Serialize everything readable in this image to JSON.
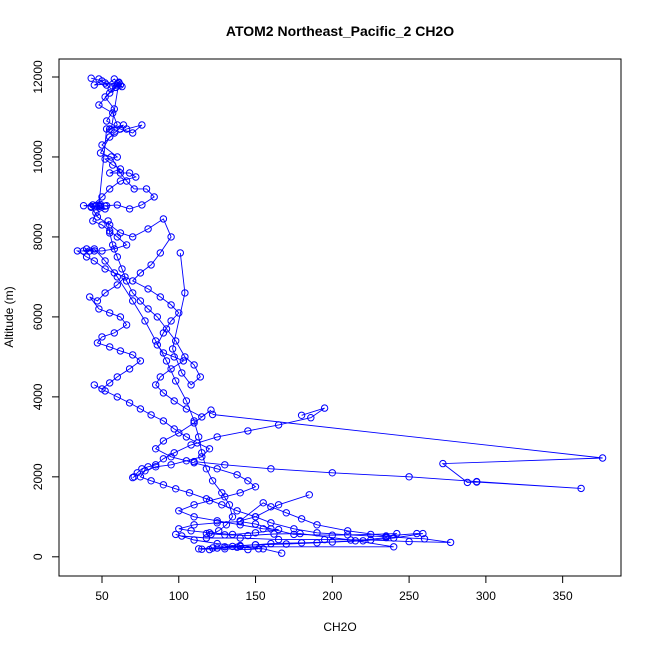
{
  "chart_data": {
    "type": "line",
    "title": "ATOM2 Northeast_Pacific_2 CH2O",
    "xlabel": "CH2O",
    "ylabel": "Altitude (m)",
    "xlim": [
      22,
      388
    ],
    "ylim": [
      -480,
      12450
    ],
    "xticks": [
      50,
      100,
      150,
      200,
      250,
      300,
      350
    ],
    "yticks": [
      0,
      2000,
      4000,
      6000,
      8000,
      10000,
      12000
    ],
    "grid": false,
    "legend": "none",
    "colors": {
      "series": "#0000ff"
    },
    "series": [
      {
        "values": [
          [
            48,
            11950
          ],
          [
            53,
            11800
          ],
          [
            58,
            11950
          ],
          [
            62,
            11800
          ],
          [
            56,
            11700
          ],
          [
            52,
            11850
          ],
          [
            60,
            11780
          ],
          [
            55,
            11600
          ],
          [
            48,
            11300
          ],
          [
            57,
            11100
          ],
          [
            60,
            10800
          ],
          [
            55,
            10700
          ],
          [
            64,
            10800
          ],
          [
            58,
            10600
          ],
          [
            50,
            10300
          ],
          [
            60,
            10000
          ],
          [
            52,
            9950
          ],
          [
            57,
            9800
          ],
          [
            62,
            9700
          ],
          [
            55,
            9600
          ],
          [
            68,
            9600
          ],
          [
            72,
            9500
          ],
          [
            62,
            9400
          ],
          [
            55,
            9200
          ],
          [
            50,
            9000
          ],
          [
            44,
            8800
          ],
          [
            38,
            8780
          ],
          [
            48,
            8760
          ],
          [
            52,
            8700
          ],
          [
            46,
            8600
          ],
          [
            44,
            8400
          ],
          [
            50,
            8300
          ],
          [
            55,
            8150
          ],
          [
            60,
            8000
          ],
          [
            66,
            7800
          ],
          [
            58,
            7700
          ],
          [
            50,
            7650
          ],
          [
            42,
            7650
          ],
          [
            34,
            7650
          ],
          [
            40,
            7500
          ],
          [
            45,
            7400
          ],
          [
            52,
            7200
          ],
          [
            58,
            7100
          ],
          [
            65,
            7000
          ],
          [
            60,
            6800
          ],
          [
            52,
            6600
          ],
          [
            47,
            6400
          ],
          [
            42,
            6500
          ],
          [
            48,
            6200
          ],
          [
            55,
            6100
          ],
          [
            62,
            6000
          ],
          [
            66,
            5800
          ],
          [
            58,
            5600
          ],
          [
            50,
            5500
          ],
          [
            47,
            5350
          ],
          [
            55,
            5250
          ],
          [
            62,
            5150
          ],
          [
            70,
            5050
          ],
          [
            75,
            4900
          ],
          [
            68,
            4700
          ],
          [
            60,
            4500
          ],
          [
            55,
            4350
          ],
          [
            50,
            4200
          ],
          [
            45,
            4300
          ],
          [
            52,
            4150
          ],
          [
            60,
            4000
          ],
          [
            68,
            3850
          ],
          [
            75,
            3700
          ],
          [
            82,
            3550
          ],
          [
            90,
            3400
          ],
          [
            97,
            3200
          ],
          [
            105,
            3000
          ],
          [
            112,
            2850
          ],
          [
            120,
            2700
          ],
          [
            115,
            2500
          ],
          [
            105,
            2400
          ],
          [
            95,
            2300
          ],
          [
            85,
            2250
          ],
          [
            78,
            2150
          ],
          [
            75,
            2000
          ],
          [
            82,
            1900
          ],
          [
            90,
            1800
          ],
          [
            98,
            1700
          ],
          [
            107,
            1600
          ],
          [
            118,
            1450
          ],
          [
            128,
            1300
          ],
          [
            138,
            1150
          ],
          [
            150,
            1000
          ],
          [
            160,
            850
          ],
          [
            175,
            700
          ],
          [
            190,
            600
          ],
          [
            210,
            550
          ],
          [
            235,
            500
          ],
          [
            260,
            450
          ],
          [
            277,
            360
          ],
          [
            250,
            380
          ],
          [
            225,
            420
          ],
          [
            195,
            430
          ],
          [
            165,
            430
          ],
          [
            140,
            470
          ],
          [
            118,
            470
          ],
          [
            102,
            520
          ],
          [
            98,
            560
          ],
          [
            110,
            420
          ],
          [
            125,
            330
          ],
          [
            140,
            260
          ],
          [
            152,
            200
          ],
          [
            145,
            180
          ],
          [
            130,
            200
          ],
          [
            115,
            190
          ],
          [
            113,
            200
          ],
          [
            122,
            220
          ],
          [
            138,
            240
          ],
          [
            155,
            200
          ],
          [
            167,
            90
          ]
        ]
      },
      {
        "values": [
          [
            43,
            11970
          ],
          [
            50,
            11900
          ],
          [
            45,
            11800
          ],
          [
            61,
            11850
          ],
          [
            52,
            11500
          ],
          [
            58,
            11200
          ],
          [
            53,
            10900
          ],
          [
            62,
            10700
          ],
          [
            70,
            10600
          ],
          [
            76,
            10800
          ],
          [
            66,
            10700
          ],
          [
            55,
            10500
          ],
          [
            49,
            10100
          ],
          [
            56,
            10000
          ],
          [
            62,
            9600
          ],
          [
            66,
            9400
          ],
          [
            71,
            9200
          ],
          [
            79,
            9200
          ],
          [
            84,
            9000
          ],
          [
            76,
            8800
          ],
          [
            68,
            8700
          ],
          [
            60,
            8800
          ],
          [
            53,
            8780
          ],
          [
            49,
            8770
          ],
          [
            43,
            8760
          ],
          [
            47,
            8500
          ],
          [
            55,
            8300
          ],
          [
            62,
            8100
          ],
          [
            70,
            8000
          ],
          [
            80,
            8200
          ],
          [
            90,
            8450
          ],
          [
            95,
            8000
          ],
          [
            88,
            7600
          ],
          [
            82,
            7300
          ],
          [
            75,
            7100
          ],
          [
            70,
            6900
          ],
          [
            80,
            6700
          ],
          [
            88,
            6500
          ],
          [
            95,
            6300
          ],
          [
            100,
            6100
          ],
          [
            95,
            5900
          ],
          [
            90,
            5600
          ],
          [
            86,
            5300
          ],
          [
            90,
            5100
          ],
          [
            97,
            5000
          ],
          [
            103,
            4900
          ],
          [
            95,
            4700
          ],
          [
            88,
            4500
          ],
          [
            85,
            4300
          ],
          [
            90,
            4100
          ],
          [
            97,
            3900
          ],
          [
            105,
            3700
          ],
          [
            115,
            3500
          ],
          [
            121,
            3670
          ],
          [
            110,
            3350
          ],
          [
            100,
            3100
          ],
          [
            90,
            2900
          ],
          [
            85,
            2700
          ],
          [
            95,
            2500
          ],
          [
            110,
            2350
          ],
          [
            125,
            2200
          ],
          [
            138,
            2050
          ],
          [
            145,
            1900
          ],
          [
            150,
            1750
          ],
          [
            140,
            1600
          ],
          [
            130,
            1500
          ],
          [
            120,
            1400
          ],
          [
            110,
            1300
          ],
          [
            100,
            1150
          ],
          [
            110,
            1000
          ],
          [
            125,
            900
          ],
          [
            140,
            800
          ],
          [
            155,
            700
          ],
          [
            165,
            680
          ],
          [
            150,
            600
          ],
          [
            135,
            560
          ],
          [
            120,
            600
          ],
          [
            108,
            650
          ],
          [
            100,
            700
          ],
          [
            110,
            800
          ],
          [
            125,
            850
          ],
          [
            140,
            880
          ],
          [
            150,
            820
          ],
          [
            160,
            700
          ],
          [
            175,
            560
          ],
          [
            200,
            540
          ],
          [
            225,
            560
          ],
          [
            242,
            580
          ],
          [
            235,
            480
          ],
          [
            215,
            400
          ],
          [
            190,
            350
          ],
          [
            170,
            320
          ],
          [
            150,
            300
          ],
          [
            135,
            260
          ],
          [
            125,
            220
          ],
          [
            120,
            180
          ]
        ]
      },
      {
        "values": [
          [
            101,
            7600
          ],
          [
            104,
            6600
          ],
          [
            96,
            5200
          ],
          [
            102,
            4600
          ],
          [
            108,
            4300
          ],
          [
            114,
            4500
          ],
          [
            110,
            4800
          ],
          [
            104,
            5000
          ],
          [
            98,
            5400
          ],
          [
            92,
            5700
          ],
          [
            86,
            6000
          ],
          [
            80,
            6200
          ],
          [
            75,
            6400
          ],
          [
            70,
            6600
          ],
          [
            66,
            6900
          ],
          [
            63,
            7200
          ],
          [
            60,
            7500
          ],
          [
            57,
            7800
          ],
          [
            55,
            8100
          ],
          [
            54,
            8400
          ]
        ]
      },
      {
        "values": [
          [
            180,
            3540
          ],
          [
            195,
            3720
          ],
          [
            186,
            3480
          ],
          [
            165,
            3300
          ],
          [
            145,
            3150
          ],
          [
            125,
            3000
          ],
          [
            108,
            2800
          ],
          [
            97,
            2600
          ],
          [
            90,
            2450
          ],
          [
            85,
            2300
          ],
          [
            80,
            2250
          ],
          [
            76,
            2200
          ],
          [
            73,
            2100
          ],
          [
            71,
            2000
          ],
          [
            70,
            1980
          ]
        ]
      },
      {
        "values": [
          [
            122,
            3560
          ],
          [
            376,
            2470
          ],
          [
            272,
            2330
          ],
          [
            288,
            1860
          ],
          [
            294,
            1870
          ],
          [
            362,
            1710
          ],
          [
            294,
            1880
          ],
          [
            250,
            2000
          ],
          [
            200,
            2100
          ],
          [
            160,
            2200
          ],
          [
            130,
            2300
          ],
          [
            110,
            2380
          ]
        ]
      },
      {
        "values": [
          [
            185,
            1550
          ],
          [
            165,
            1300
          ],
          [
            150,
            1000
          ],
          [
            140,
            900
          ],
          [
            155,
            1350
          ],
          [
            160,
            1250
          ],
          [
            170,
            1100
          ],
          [
            180,
            950
          ],
          [
            190,
            800
          ],
          [
            210,
            650
          ],
          [
            235,
            520
          ],
          [
            255,
            580
          ],
          [
            259,
            580
          ],
          [
            240,
            470
          ],
          [
            220,
            400
          ],
          [
            200,
            370
          ],
          [
            180,
            350
          ],
          [
            160,
            330
          ],
          [
            150,
            300
          ],
          [
            140,
            280
          ],
          [
            130,
            250
          ],
          [
            240,
            250
          ],
          [
            212,
            420
          ],
          [
            179,
            580
          ],
          [
            162,
            570
          ],
          [
            145,
            530
          ],
          [
            130,
            550
          ],
          [
            118,
            580
          ]
        ]
      },
      {
        "values": [
          [
            45,
            7650
          ],
          [
            40,
            7700
          ],
          [
            38,
            7650
          ],
          [
            45,
            7700
          ],
          [
            52,
            7400
          ],
          [
            60,
            7000
          ],
          [
            70,
            6400
          ],
          [
            78,
            5900
          ],
          [
            85,
            5400
          ],
          [
            92,
            4900
          ],
          [
            98,
            4400
          ],
          [
            105,
            3900
          ],
          [
            110,
            3400
          ],
          [
            113,
            3000
          ],
          [
            115,
            2600
          ],
          [
            118,
            2200
          ],
          [
            122,
            1900
          ],
          [
            128,
            1600
          ],
          [
            133,
            1300
          ],
          [
            135,
            1000
          ],
          [
            131,
            800
          ],
          [
            126,
            650
          ],
          [
            121,
            560
          ]
        ]
      },
      {
        "values": [
          [
            60,
            11830
          ],
          [
            63,
            11760
          ],
          [
            59,
            11740
          ],
          [
            61,
            11870
          ],
          [
            56,
            10680
          ],
          [
            53,
            10700
          ],
          [
            48,
            8790
          ],
          [
            52,
            8770
          ],
          [
            46,
            8780
          ],
          [
            43,
            8740
          ],
          [
            49,
            8810
          ]
        ]
      }
    ]
  }
}
